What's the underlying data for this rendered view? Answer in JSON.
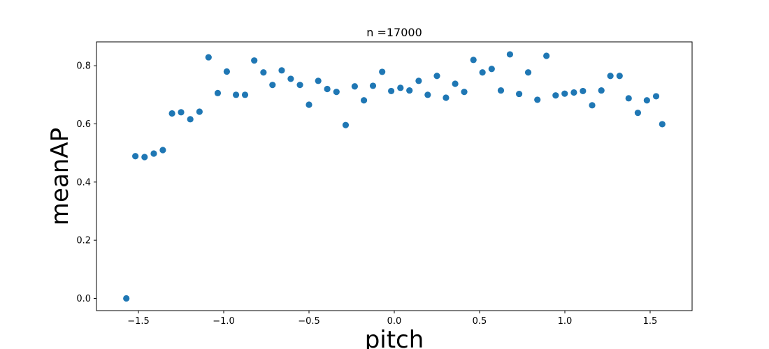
{
  "chart_data": {
    "type": "scatter",
    "title": "n =17000",
    "xlabel": "pitch",
    "ylabel": "meanAP",
    "xlim": [
      -1.746,
      1.746
    ],
    "ylim": [
      -0.042,
      0.882
    ],
    "xticks": [
      -1.5,
      -1.0,
      -0.5,
      0.0,
      0.5,
      1.0,
      1.5
    ],
    "xtick_labels": [
      "−1.5",
      "−1.0",
      "−0.5",
      "0.0",
      "0.5",
      "1.0",
      "1.5"
    ],
    "yticks": [
      0.0,
      0.2,
      0.4,
      0.6,
      0.8
    ],
    "ytick_labels": [
      "0.0",
      "0.2",
      "0.4",
      "0.6",
      "0.8"
    ],
    "grid": false,
    "marker_color": "#1f77b4",
    "points": [
      {
        "x": -1.571,
        "y": 0.0
      },
      {
        "x": -1.518,
        "y": 0.489
      },
      {
        "x": -1.464,
        "y": 0.486
      },
      {
        "x": -1.41,
        "y": 0.498
      },
      {
        "x": -1.357,
        "y": 0.51
      },
      {
        "x": -1.303,
        "y": 0.636
      },
      {
        "x": -1.25,
        "y": 0.64
      },
      {
        "x": -1.196,
        "y": 0.616
      },
      {
        "x": -1.142,
        "y": 0.642
      },
      {
        "x": -1.089,
        "y": 0.829
      },
      {
        "x": -1.035,
        "y": 0.706
      },
      {
        "x": -0.982,
        "y": 0.78
      },
      {
        "x": -0.928,
        "y": 0.7
      },
      {
        "x": -0.875,
        "y": 0.7
      },
      {
        "x": -0.821,
        "y": 0.818
      },
      {
        "x": -0.767,
        "y": 0.777
      },
      {
        "x": -0.714,
        "y": 0.734
      },
      {
        "x": -0.66,
        "y": 0.784
      },
      {
        "x": -0.607,
        "y": 0.755
      },
      {
        "x": -0.553,
        "y": 0.734
      },
      {
        "x": -0.5,
        "y": 0.666
      },
      {
        "x": -0.446,
        "y": 0.748
      },
      {
        "x": -0.393,
        "y": 0.72
      },
      {
        "x": -0.339,
        "y": 0.71
      },
      {
        "x": -0.285,
        "y": 0.596
      },
      {
        "x": -0.232,
        "y": 0.729
      },
      {
        "x": -0.178,
        "y": 0.681
      },
      {
        "x": -0.125,
        "y": 0.731
      },
      {
        "x": -0.071,
        "y": 0.779
      },
      {
        "x": -0.018,
        "y": 0.713
      },
      {
        "x": 0.036,
        "y": 0.724
      },
      {
        "x": 0.089,
        "y": 0.715
      },
      {
        "x": 0.143,
        "y": 0.748
      },
      {
        "x": 0.196,
        "y": 0.7
      },
      {
        "x": 0.25,
        "y": 0.765
      },
      {
        "x": 0.303,
        "y": 0.69
      },
      {
        "x": 0.357,
        "y": 0.738
      },
      {
        "x": 0.41,
        "y": 0.71
      },
      {
        "x": 0.464,
        "y": 0.82
      },
      {
        "x": 0.517,
        "y": 0.777
      },
      {
        "x": 0.571,
        "y": 0.789
      },
      {
        "x": 0.625,
        "y": 0.715
      },
      {
        "x": 0.678,
        "y": 0.839
      },
      {
        "x": 0.732,
        "y": 0.703
      },
      {
        "x": 0.785,
        "y": 0.777
      },
      {
        "x": 0.839,
        "y": 0.683
      },
      {
        "x": 0.892,
        "y": 0.834
      },
      {
        "x": 0.946,
        "y": 0.698
      },
      {
        "x": 0.999,
        "y": 0.704
      },
      {
        "x": 1.053,
        "y": 0.708
      },
      {
        "x": 1.106,
        "y": 0.713
      },
      {
        "x": 1.16,
        "y": 0.664
      },
      {
        "x": 1.214,
        "y": 0.715
      },
      {
        "x": 1.267,
        "y": 0.765
      },
      {
        "x": 1.321,
        "y": 0.765
      },
      {
        "x": 1.374,
        "y": 0.688
      },
      {
        "x": 1.428,
        "y": 0.638
      },
      {
        "x": 1.481,
        "y": 0.681
      },
      {
        "x": 1.535,
        "y": 0.695
      },
      {
        "x": 1.571,
        "y": 0.599
      }
    ]
  }
}
